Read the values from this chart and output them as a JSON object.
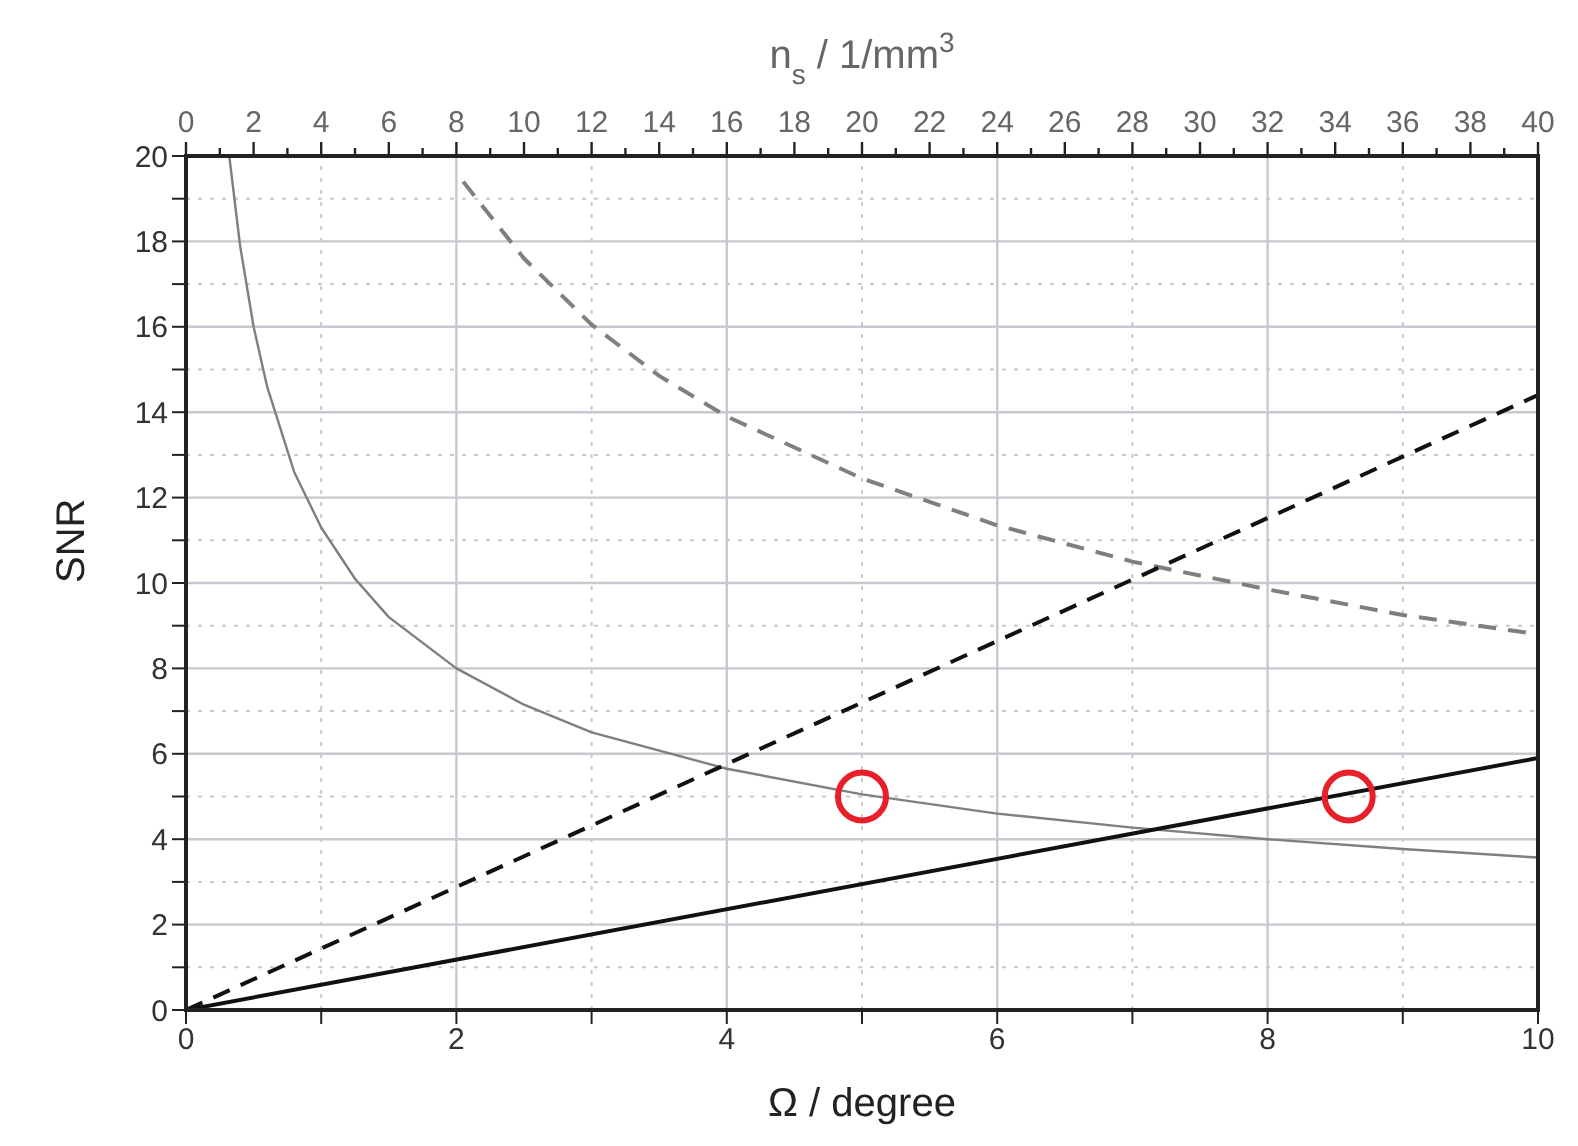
{
  "chart_data": {
    "type": "line",
    "xlabel": "Ω / degree",
    "ylabel": "SNR",
    "x2label": "n$_{s}$ / 1/mm$^{3}$",
    "xlim": [
      0,
      10
    ],
    "xticks": [
      0,
      {
        "value": 1,
        "label": null
      },
      2,
      {
        "value": 3,
        "label": null
      },
      4,
      {
        "value": 5,
        "label": null
      },
      6,
      {
        "value": 7,
        "label": null
      },
      8,
      {
        "value": 9,
        "label": null
      },
      10
    ],
    "x2lim": [
      0,
      40
    ],
    "x2ticks": [
      0,
      {
        "value": 1,
        "label": null
      },
      2,
      {
        "value": 3,
        "label": null
      },
      4,
      {
        "value": 5,
        "label": null
      },
      6,
      {
        "value": 7,
        "label": null
      },
      8,
      {
        "value": 9,
        "label": null
      },
      10,
      {
        "value": 11,
        "label": null
      },
      12,
      {
        "value": 13,
        "label": null
      },
      14,
      {
        "value": 15,
        "label": null
      },
      16,
      {
        "value": 17,
        "label": null
      },
      18,
      {
        "value": 19,
        "label": null
      },
      20,
      {
        "value": 21,
        "label": null
      },
      22,
      {
        "value": 23,
        "label": null
      },
      24,
      {
        "value": 25,
        "label": null
      },
      26,
      {
        "value": 27,
        "label": null
      },
      28,
      {
        "value": 29,
        "label": null
      },
      30,
      {
        "value": 31,
        "label": null
      },
      32,
      {
        "value": 33,
        "label": null
      },
      34,
      {
        "value": 35,
        "label": null
      },
      36,
      {
        "value": 37,
        "label": null
      },
      38,
      {
        "value": 39,
        "label": null
      },
      40
    ],
    "ylim": [
      0,
      20
    ],
    "yticks": [
      0,
      {
        "value": 1,
        "label": null
      },
      2,
      {
        "value": 3,
        "label": null
      },
      4,
      {
        "value": 5,
        "label": null
      },
      6,
      {
        "value": 7,
        "label": null
      },
      8,
      {
        "value": 9,
        "label": null
      },
      10,
      {
        "value": 11,
        "label": null
      },
      12,
      {
        "value": 13,
        "label": null
      },
      14,
      {
        "value": 15,
        "label": null
      },
      16,
      {
        "value": 17,
        "label": null
      },
      18,
      {
        "value": 19,
        "label": null
      },
      20
    ],
    "grid": true,
    "marker": "none",
    "series": [
      {
        "color": "#7f7f7f",
        "line_style": "solid",
        "x": [
          0.32,
          0.4,
          0.5,
          0.6,
          0.8,
          1,
          1.25,
          1.5,
          2,
          2.5,
          3,
          4,
          5,
          6,
          7,
          8,
          9,
          10
        ],
        "values": [
          20,
          17.9,
          16,
          14.6,
          12.6,
          11.3,
          10.1,
          9.2,
          8,
          7.15,
          6.5,
          5.65,
          5.05,
          4.6,
          4.27,
          4,
          3.77,
          3.57
        ]
      },
      {
        "color": "#7f7f7f",
        "line_style": "dashed",
        "x": [
          2.05,
          2.5,
          3,
          3.5,
          4,
          5,
          6,
          7,
          8,
          9,
          10
        ],
        "values": [
          19.4,
          17.6,
          16.05,
          14.85,
          13.9,
          12.45,
          11.35,
          10.5,
          9.85,
          9.25,
          8.8
        ]
      },
      {
        "color": "#111111",
        "line_style": "dashed",
        "x": [
          0,
          10
        ],
        "values": [
          0,
          14.4
        ]
      },
      {
        "color": "#111111",
        "line_style": "solid",
        "x": [
          0,
          10
        ],
        "values": [
          0,
          5.9
        ]
      },
      {
        "type": "scatter",
        "color": "#e8202a",
        "marker": "circle",
        "x": [
          5,
          8.6
        ],
        "values": [
          5,
          5
        ]
      }
    ]
  }
}
